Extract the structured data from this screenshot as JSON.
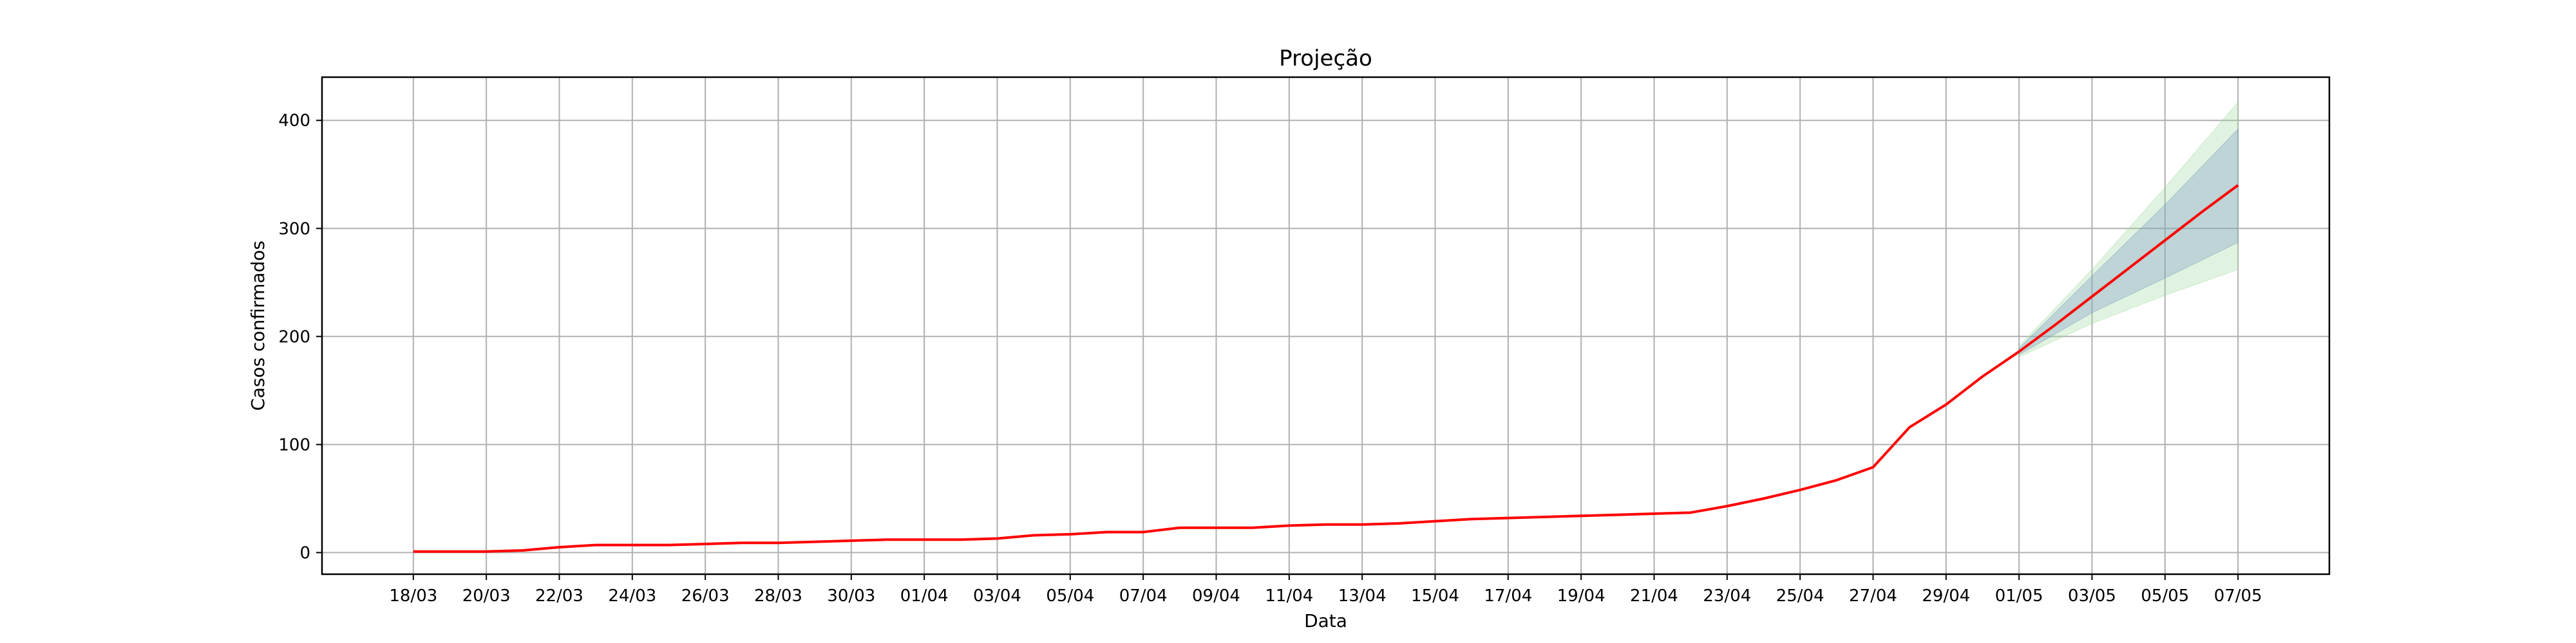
{
  "chart_data": {
    "type": "line",
    "title": "Projeção",
    "xlabel": "Data",
    "ylabel": "Casos confirmados",
    "ylim": [
      -20,
      440
    ],
    "yticks": [
      0,
      100,
      200,
      300,
      400
    ],
    "grid": true,
    "x_start": "18/03",
    "x_end": "07/05",
    "xtick_labels": [
      "18/03",
      "20/03",
      "22/03",
      "24/03",
      "26/03",
      "28/03",
      "30/03",
      "01/04",
      "03/04",
      "05/04",
      "07/04",
      "09/04",
      "11/04",
      "13/04",
      "15/04",
      "17/04",
      "19/04",
      "21/04",
      "23/04",
      "25/04",
      "27/04",
      "29/04",
      "01/05",
      "03/05",
      "05/05",
      "07/05"
    ],
    "series": [
      {
        "values": [
          {
            "date": "18/03",
            "y": 1
          },
          {
            "date": "19/03",
            "y": 1
          },
          {
            "date": "20/03",
            "y": 1
          },
          {
            "date": "21/03",
            "y": 2
          },
          {
            "date": "22/03",
            "y": 5
          },
          {
            "date": "23/03",
            "y": 7
          },
          {
            "date": "24/03",
            "y": 7
          },
          {
            "date": "25/03",
            "y": 7
          },
          {
            "date": "26/03",
            "y": 8
          },
          {
            "date": "27/03",
            "y": 9
          },
          {
            "date": "28/03",
            "y": 9
          },
          {
            "date": "29/03",
            "y": 10
          },
          {
            "date": "30/03",
            "y": 11
          },
          {
            "date": "31/03",
            "y": 12
          },
          {
            "date": "01/04",
            "y": 12
          },
          {
            "date": "02/04",
            "y": 12
          },
          {
            "date": "03/04",
            "y": 13
          },
          {
            "date": "04/04",
            "y": 16
          },
          {
            "date": "05/04",
            "y": 17
          },
          {
            "date": "06/04",
            "y": 19
          },
          {
            "date": "07/04",
            "y": 19
          },
          {
            "date": "08/04",
            "y": 23
          },
          {
            "date": "09/04",
            "y": 23
          },
          {
            "date": "10/04",
            "y": 23
          },
          {
            "date": "11/04",
            "y": 25
          },
          {
            "date": "12/04",
            "y": 26
          },
          {
            "date": "13/04",
            "y": 26
          },
          {
            "date": "14/04",
            "y": 27
          },
          {
            "date": "15/04",
            "y": 29
          },
          {
            "date": "16/04",
            "y": 31
          },
          {
            "date": "17/04",
            "y": 32
          },
          {
            "date": "18/04",
            "y": 33
          },
          {
            "date": "19/04",
            "y": 34
          },
          {
            "date": "20/04",
            "y": 35
          },
          {
            "date": "21/04",
            "y": 36
          },
          {
            "date": "22/04",
            "y": 37
          },
          {
            "date": "23/04",
            "y": 43
          },
          {
            "date": "24/04",
            "y": 50
          },
          {
            "date": "25/04",
            "y": 58
          },
          {
            "date": "26/04",
            "y": 67
          },
          {
            "date": "27/04",
            "y": 79
          },
          {
            "date": "28/04",
            "y": 116
          },
          {
            "date": "29/04",
            "y": 137
          },
          {
            "date": "30/04",
            "y": 163
          },
          {
            "date": "01/05",
            "y": 186
          },
          {
            "date": "02/05",
            "y": 211
          },
          {
            "date": "03/05",
            "y": 237
          },
          {
            "date": "04/05",
            "y": 263
          },
          {
            "date": "05/05",
            "y": 289
          },
          {
            "date": "06/05",
            "y": 315
          },
          {
            "date": "07/05",
            "y": 340
          }
        ],
        "color": "#ff0000"
      }
    ],
    "bands": [
      {
        "color": "#98d698",
        "opacity": 0.3,
        "values": [
          {
            "date": "01/05",
            "lower": 181,
            "upper": 191
          },
          {
            "date": "03/05",
            "lower": 212,
            "upper": 262
          },
          {
            "date": "05/05",
            "lower": 238,
            "upper": 338
          },
          {
            "date": "07/05",
            "lower": 262,
            "upper": 417
          }
        ]
      },
      {
        "color": "#6f8fbf",
        "opacity": 0.3,
        "values": [
          {
            "date": "01/05",
            "lower": 183,
            "upper": 189
          },
          {
            "date": "03/05",
            "lower": 222,
            "upper": 256
          },
          {
            "date": "05/05",
            "lower": 254,
            "upper": 322
          },
          {
            "date": "07/05",
            "lower": 287,
            "upper": 392
          }
        ]
      }
    ]
  }
}
